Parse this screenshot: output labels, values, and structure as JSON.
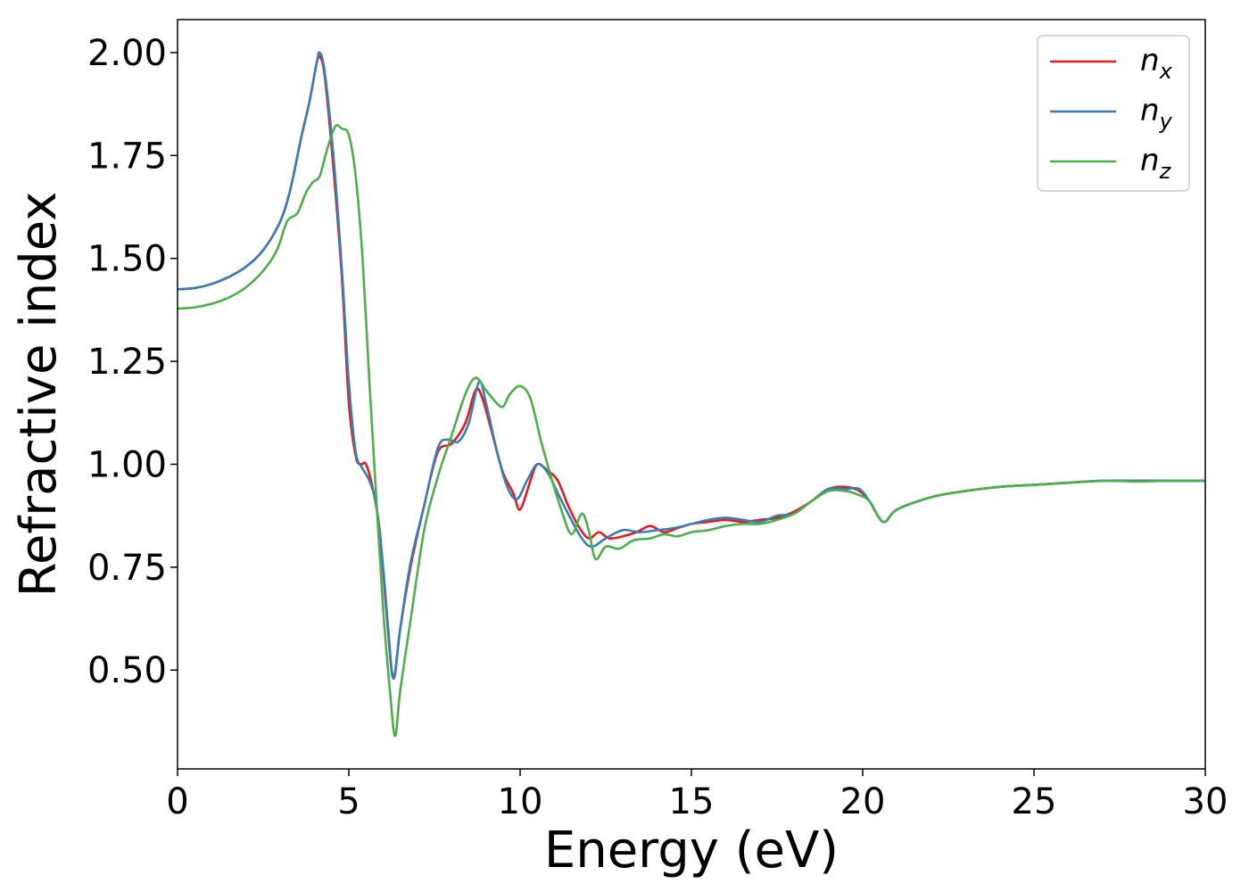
{
  "chart_data": {
    "type": "line",
    "title": "",
    "xlabel": "Energy (eV)",
    "ylabel": "Refractive index",
    "xlim": [
      0,
      30
    ],
    "ylim": [
      0.26,
      2.08
    ],
    "xticks": [
      0,
      5,
      10,
      15,
      20,
      25,
      30
    ],
    "xtick_labels": [
      "0",
      "5",
      "10",
      "15",
      "20",
      "25",
      "30"
    ],
    "yticks": [
      0.5,
      0.75,
      1.0,
      1.25,
      1.5,
      1.75,
      2.0
    ],
    "ytick_labels": [
      "0.50",
      "0.75",
      "1.00",
      "1.25",
      "1.50",
      "1.75",
      "2.00"
    ],
    "grid": false,
    "legend_position": "top-right",
    "series": [
      {
        "name": "n",
        "subscript": "x",
        "color": "#e41a1c",
        "points": [
          [
            0,
            1.425
          ],
          [
            0.5,
            1.428
          ],
          [
            1,
            1.438
          ],
          [
            1.5,
            1.455
          ],
          [
            2,
            1.48
          ],
          [
            2.5,
            1.52
          ],
          [
            3,
            1.59
          ],
          [
            3.3,
            1.67
          ],
          [
            3.6,
            1.79
          ],
          [
            3.85,
            1.88
          ],
          [
            4.05,
            1.97
          ],
          [
            4.15,
            1.99
          ],
          [
            4.3,
            1.94
          ],
          [
            4.55,
            1.72
          ],
          [
            4.8,
            1.45
          ],
          [
            5.0,
            1.15
          ],
          [
            5.2,
            1.02
          ],
          [
            5.35,
            1.0
          ],
          [
            5.5,
            1.0
          ],
          [
            5.7,
            0.94
          ],
          [
            5.9,
            0.84
          ],
          [
            6.1,
            0.64
          ],
          [
            6.3,
            0.48
          ],
          [
            6.5,
            0.6
          ],
          [
            6.8,
            0.75
          ],
          [
            7.2,
            0.9
          ],
          [
            7.6,
            1.03
          ],
          [
            8.0,
            1.05
          ],
          [
            8.4,
            1.1
          ],
          [
            8.7,
            1.18
          ],
          [
            8.9,
            1.16
          ],
          [
            9.2,
            1.07
          ],
          [
            9.5,
            0.98
          ],
          [
            9.8,
            0.93
          ],
          [
            10.0,
            0.89
          ],
          [
            10.3,
            0.96
          ],
          [
            10.5,
            1.0
          ],
          [
            10.8,
            0.985
          ],
          [
            11.1,
            0.96
          ],
          [
            11.4,
            0.9
          ],
          [
            11.7,
            0.85
          ],
          [
            12.0,
            0.82
          ],
          [
            12.3,
            0.835
          ],
          [
            12.6,
            0.82
          ],
          [
            13.0,
            0.825
          ],
          [
            13.4,
            0.835
          ],
          [
            13.8,
            0.85
          ],
          [
            14.2,
            0.835
          ],
          [
            14.6,
            0.845
          ],
          [
            15.0,
            0.855
          ],
          [
            15.5,
            0.86
          ],
          [
            16.0,
            0.865
          ],
          [
            16.5,
            0.86
          ],
          [
            17.0,
            0.865
          ],
          [
            17.5,
            0.87
          ],
          [
            18.0,
            0.885
          ],
          [
            18.5,
            0.91
          ],
          [
            19.0,
            0.94
          ],
          [
            19.5,
            0.945
          ],
          [
            19.9,
            0.935
          ],
          [
            20.2,
            0.91
          ],
          [
            20.6,
            0.86
          ],
          [
            21.0,
            0.89
          ],
          [
            22,
            0.92
          ],
          [
            23,
            0.935
          ],
          [
            24,
            0.945
          ],
          [
            25,
            0.95
          ],
          [
            26,
            0.955
          ],
          [
            27,
            0.96
          ],
          [
            28,
            0.96
          ],
          [
            29,
            0.96
          ],
          [
            30,
            0.96
          ]
        ]
      },
      {
        "name": "n",
        "subscript": "y",
        "color": "#377eb8",
        "points": [
          [
            0,
            1.425
          ],
          [
            0.5,
            1.428
          ],
          [
            1,
            1.438
          ],
          [
            1.5,
            1.455
          ],
          [
            2,
            1.48
          ],
          [
            2.5,
            1.52
          ],
          [
            3,
            1.59
          ],
          [
            3.3,
            1.67
          ],
          [
            3.6,
            1.79
          ],
          [
            3.85,
            1.88
          ],
          [
            4.05,
            1.97
          ],
          [
            4.15,
            2.0
          ],
          [
            4.3,
            1.95
          ],
          [
            4.55,
            1.75
          ],
          [
            4.8,
            1.47
          ],
          [
            5.0,
            1.2
          ],
          [
            5.2,
            1.03
          ],
          [
            5.4,
            0.99
          ],
          [
            5.6,
            0.96
          ],
          [
            5.8,
            0.9
          ],
          [
            6.0,
            0.75
          ],
          [
            6.15,
            0.6
          ],
          [
            6.3,
            0.48
          ],
          [
            6.5,
            0.6
          ],
          [
            6.8,
            0.76
          ],
          [
            7.2,
            0.9
          ],
          [
            7.6,
            1.04
          ],
          [
            7.9,
            1.06
          ],
          [
            8.2,
            1.055
          ],
          [
            8.5,
            1.1
          ],
          [
            8.8,
            1.2
          ],
          [
            9.0,
            1.15
          ],
          [
            9.3,
            1.04
          ],
          [
            9.6,
            0.95
          ],
          [
            9.9,
            0.915
          ],
          [
            10.2,
            0.96
          ],
          [
            10.5,
            1.0
          ],
          [
            10.8,
            0.98
          ],
          [
            11.1,
            0.93
          ],
          [
            11.4,
            0.88
          ],
          [
            11.8,
            0.82
          ],
          [
            12.1,
            0.8
          ],
          [
            12.5,
            0.82
          ],
          [
            13.0,
            0.84
          ],
          [
            13.5,
            0.835
          ],
          [
            14.0,
            0.84
          ],
          [
            14.5,
            0.845
          ],
          [
            15.0,
            0.855
          ],
          [
            15.5,
            0.865
          ],
          [
            16.0,
            0.87
          ],
          [
            16.5,
            0.865
          ],
          [
            17.0,
            0.86
          ],
          [
            17.5,
            0.875
          ],
          [
            18.0,
            0.88
          ],
          [
            18.5,
            0.91
          ],
          [
            19.0,
            0.94
          ],
          [
            19.5,
            0.94
          ],
          [
            19.9,
            0.94
          ],
          [
            20.2,
            0.91
          ],
          [
            20.6,
            0.86
          ],
          [
            21.0,
            0.89
          ],
          [
            22,
            0.92
          ],
          [
            23,
            0.935
          ],
          [
            24,
            0.945
          ],
          [
            25,
            0.95
          ],
          [
            26,
            0.955
          ],
          [
            27,
            0.96
          ],
          [
            28,
            0.96
          ],
          [
            29,
            0.96
          ],
          [
            30,
            0.96
          ]
        ]
      },
      {
        "name": "n",
        "subscript": "z",
        "color": "#4daf4a",
        "points": [
          [
            0,
            1.378
          ],
          [
            0.5,
            1.381
          ],
          [
            1,
            1.39
          ],
          [
            1.5,
            1.405
          ],
          [
            2,
            1.43
          ],
          [
            2.5,
            1.47
          ],
          [
            2.9,
            1.52
          ],
          [
            3.2,
            1.59
          ],
          [
            3.5,
            1.61
          ],
          [
            3.75,
            1.66
          ],
          [
            3.95,
            1.685
          ],
          [
            4.15,
            1.7
          ],
          [
            4.35,
            1.76
          ],
          [
            4.6,
            1.82
          ],
          [
            4.8,
            1.815
          ],
          [
            5.0,
            1.8
          ],
          [
            5.2,
            1.7
          ],
          [
            5.4,
            1.5
          ],
          [
            5.6,
            1.2
          ],
          [
            5.8,
            0.92
          ],
          [
            6.0,
            0.65
          ],
          [
            6.2,
            0.45
          ],
          [
            6.35,
            0.34
          ],
          [
            6.5,
            0.45
          ],
          [
            6.8,
            0.62
          ],
          [
            7.2,
            0.84
          ],
          [
            7.6,
            0.97
          ],
          [
            8.0,
            1.07
          ],
          [
            8.4,
            1.17
          ],
          [
            8.7,
            1.21
          ],
          [
            9.0,
            1.18
          ],
          [
            9.3,
            1.15
          ],
          [
            9.5,
            1.14
          ],
          [
            9.7,
            1.17
          ],
          [
            10.0,
            1.19
          ],
          [
            10.3,
            1.16
          ],
          [
            10.6,
            1.06
          ],
          [
            10.9,
            0.97
          ],
          [
            11.2,
            0.89
          ],
          [
            11.5,
            0.83
          ],
          [
            11.8,
            0.88
          ],
          [
            12.0,
            0.84
          ],
          [
            12.2,
            0.77
          ],
          [
            12.5,
            0.8
          ],
          [
            12.9,
            0.795
          ],
          [
            13.3,
            0.815
          ],
          [
            13.8,
            0.82
          ],
          [
            14.2,
            0.83
          ],
          [
            14.6,
            0.825
          ],
          [
            15.0,
            0.835
          ],
          [
            15.5,
            0.84
          ],
          [
            16.0,
            0.85
          ],
          [
            16.5,
            0.855
          ],
          [
            17.0,
            0.855
          ],
          [
            17.5,
            0.865
          ],
          [
            18.0,
            0.88
          ],
          [
            18.5,
            0.91
          ],
          [
            19.0,
            0.935
          ],
          [
            19.5,
            0.935
          ],
          [
            19.9,
            0.925
          ],
          [
            20.2,
            0.91
          ],
          [
            20.6,
            0.86
          ],
          [
            21.0,
            0.89
          ],
          [
            22,
            0.92
          ],
          [
            23,
            0.935
          ],
          [
            24,
            0.945
          ],
          [
            25,
            0.95
          ],
          [
            26,
            0.955
          ],
          [
            27,
            0.96
          ],
          [
            28,
            0.958
          ],
          [
            29,
            0.96
          ],
          [
            30,
            0.96
          ]
        ]
      }
    ]
  }
}
